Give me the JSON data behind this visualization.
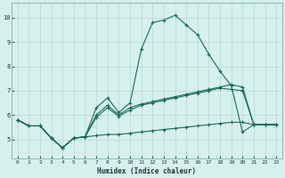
{
  "xlabel": "Humidex (Indice chaleur)",
  "bg_color": "#d6f0ec",
  "grid_color": "#b8ddd8",
  "line_color": "#1a6b5a",
  "xlim": [
    -0.5,
    23.5
  ],
  "ylim": [
    4.2,
    10.6
  ],
  "xticks": [
    0,
    1,
    2,
    3,
    4,
    5,
    6,
    7,
    8,
    9,
    10,
    11,
    12,
    13,
    14,
    15,
    16,
    17,
    18,
    19,
    20,
    21,
    22,
    23
  ],
  "yticks": [
    5,
    6,
    7,
    8,
    9,
    10
  ],
  "series1": [
    5.8,
    5.55,
    5.55,
    5.05,
    4.65,
    5.05,
    5.1,
    6.3,
    6.7,
    6.1,
    6.5,
    8.7,
    9.8,
    9.9,
    10.1,
    9.7,
    9.3,
    8.5,
    7.8,
    7.2,
    5.3,
    5.6,
    5.6,
    5.6
  ],
  "series2": [
    5.8,
    5.55,
    5.55,
    5.05,
    4.65,
    5.05,
    5.1,
    6.0,
    6.4,
    6.0,
    6.3,
    6.45,
    6.55,
    6.65,
    6.75,
    6.85,
    6.95,
    7.05,
    7.15,
    7.25,
    7.15,
    5.6,
    5.6,
    5.6
  ],
  "series3": [
    5.8,
    5.55,
    5.55,
    5.05,
    4.65,
    5.05,
    5.1,
    5.15,
    5.2,
    5.2,
    5.25,
    5.3,
    5.35,
    5.4,
    5.45,
    5.5,
    5.55,
    5.6,
    5.65,
    5.7,
    5.7,
    5.6,
    5.6,
    5.6
  ],
  "series4": [
    5.8,
    5.55,
    5.55,
    5.05,
    4.65,
    5.05,
    5.1,
    5.9,
    6.3,
    5.95,
    6.2,
    6.4,
    6.5,
    6.6,
    6.7,
    6.8,
    6.9,
    7.0,
    7.1,
    7.05,
    7.0,
    5.6,
    5.6,
    5.6
  ]
}
